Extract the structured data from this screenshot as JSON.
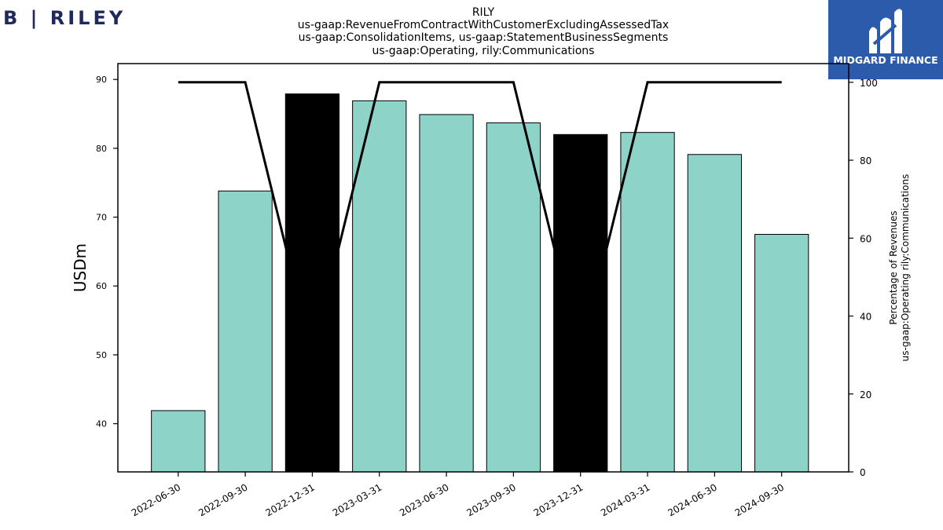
{
  "header": {
    "company_logo_text": "B | RILEY",
    "brand_logo_text": "MIDGARD FINANCE"
  },
  "chart_data": {
    "type": "bar",
    "title_lines": [
      "RILY",
      "us-gaap:RevenueFromContractWithCustomerExcludingAssessedTax",
      "us-gaap:ConsolidationItems, us-gaap:StatementBusinessSegments",
      "us-gaap:Operating, rily:Communications"
    ],
    "categories": [
      "2022-06-30",
      "2022-09-30",
      "2022-12-31",
      "2023-03-31",
      "2023-06-30",
      "2023-09-30",
      "2023-12-31",
      "2024-03-31",
      "2024-06-30",
      "2024-09-30"
    ],
    "series": [
      {
        "axis": "left",
        "type": "bar",
        "values": [
          41.9,
          73.8,
          87.9,
          86.9,
          84.9,
          83.7,
          82.0,
          82.3,
          79.1,
          67.5
        ],
        "colors": [
          "#8dd3c7",
          "#8dd3c7",
          "#000000",
          "#8dd3c7",
          "#8dd3c7",
          "#8dd3c7",
          "#000000",
          "#8dd3c7",
          "#8dd3c7",
          "#8dd3c7"
        ]
      },
      {
        "axis": "right",
        "type": "line",
        "color": "#000000",
        "values": [
          100,
          100,
          30,
          100,
          100,
          100,
          30,
          100,
          100,
          100
        ]
      }
    ],
    "ylabel": "USDm",
    "ylabel_right": [
      "Percentage of Revenues",
      "us-gaap:Operating rily:Communications"
    ],
    "ylim": [
      33,
      92.3
    ],
    "yticks": [
      40,
      50,
      60,
      70,
      80,
      90
    ],
    "ylim_right": [
      0,
      104.8
    ],
    "yticks_right": [
      0,
      20,
      40,
      60,
      80,
      100
    ],
    "grid": false
  }
}
